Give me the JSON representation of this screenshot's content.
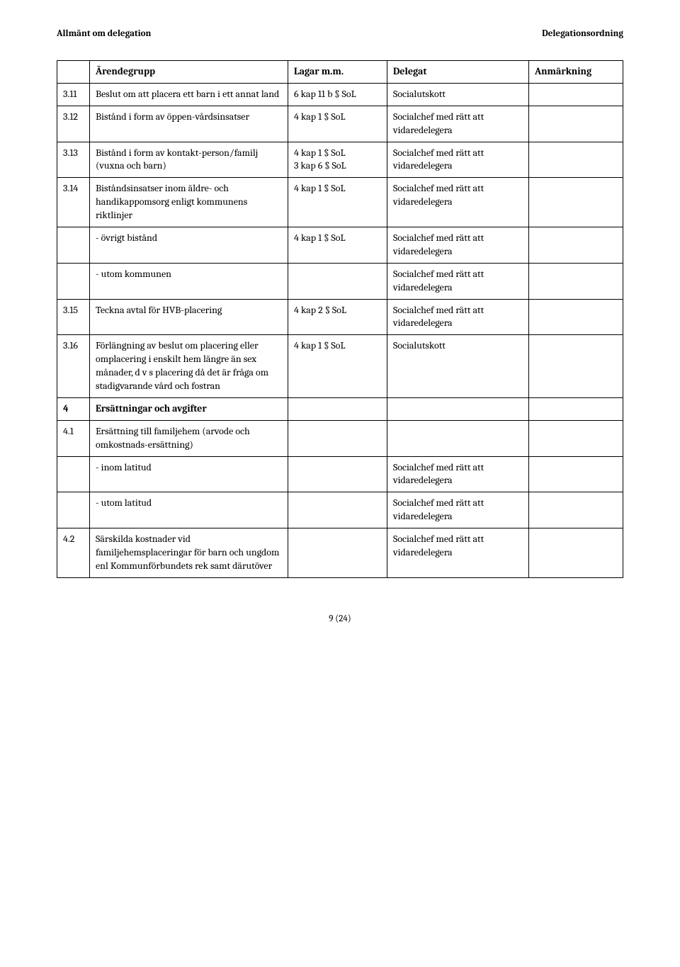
{
  "header": {
    "left": "Allmänt om delegation",
    "right": "Delegationsordning"
  },
  "table": {
    "columns": {
      "c1": "",
      "c2": "Ärendegrupp",
      "c3": "Lagar m.m.",
      "c4": "Delegat",
      "c5": "Anmärkning"
    }
  },
  "rows": {
    "r311": {
      "num": "3.11",
      "desc": "Beslut om att placera ett barn i ett annat land",
      "law": "6 kap 11 b § SoL",
      "del": "Socialutskott",
      "note": ""
    },
    "r312": {
      "num": "3.12",
      "desc": "Bistånd i form av öppen-vårdsinsatser",
      "law": "4 kap 1 § SoL",
      "del": "Socialchef med rätt att vidaredelegera",
      "note": ""
    },
    "r313": {
      "num": "3.13",
      "desc": "Bistånd i form av kontakt-person/familj (vuxna och barn)",
      "law": "4 kap 1 § SoL\n3 kap 6 § SoL",
      "del": "Socialchef med rätt att vidaredelegera",
      "note": ""
    },
    "r314": {
      "num": "3.14",
      "desc": "Biståndsinsatser inom äldre- och handikappomsorg enligt kommunens riktlinjer",
      "law": "4 kap 1 § SoL",
      "del": "Socialchef med rätt att vidaredelegera",
      "note": ""
    },
    "r314a": {
      "num": "",
      "desc": "- övrigt bistånd",
      "law": "4 kap 1 § SoL",
      "del": "Socialchef med rätt att vidaredelegera",
      "note": ""
    },
    "r314b": {
      "num": "",
      "desc": "- utom kommunen",
      "law": "",
      "del": "Socialchef med rätt att vidaredelegera",
      "note": ""
    },
    "r315": {
      "num": "3.15",
      "desc": "Teckna avtal för HVB-placering",
      "law": "4 kap 2 § SoL",
      "del": "Socialchef med rätt att vidaredelegera",
      "note": ""
    },
    "r316": {
      "num": "3.16",
      "desc": "Förlängning av beslut om placering eller omplacering i enskilt hem längre än sex månader, d v s placering då det är fråga om stadigvarande vård och fostran",
      "law": "4 kap 1 § SoL",
      "del": "Socialutskott",
      "note": ""
    },
    "r4": {
      "num": "4",
      "desc": "Ersättningar och avgifter",
      "law": "",
      "del": "",
      "note": ""
    },
    "r41": {
      "num": "4.1",
      "desc": "Ersättning till familjehem (arvode och omkostnads-ersättning)",
      "law": "",
      "del": "",
      "note": ""
    },
    "r41a": {
      "num": "",
      "desc": "- inom latitud",
      "law": "",
      "del": "Socialchef med rätt att vidaredelegera",
      "note": ""
    },
    "r41b": {
      "num": "",
      "desc": "- utom latitud",
      "law": "",
      "del": "Socialchef med rätt att vidaredelegera",
      "note": ""
    },
    "r42": {
      "num": "4.2",
      "desc": "Särskilda kostnader vid familjehemsplaceringar för barn och ungdom enl Kommunförbundets rek samt därutöver",
      "law": "",
      "del": "Socialchef med rätt att vidaredelegera",
      "note": ""
    }
  },
  "footer": {
    "page": "9 (24)"
  }
}
